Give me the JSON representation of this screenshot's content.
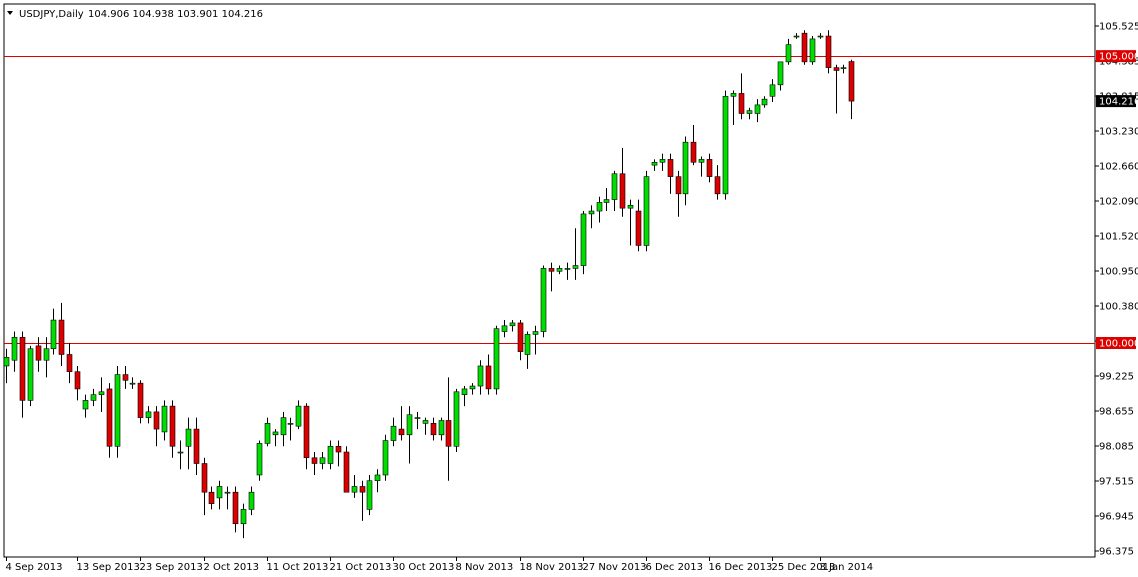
{
  "header": {
    "symbol": "USDJPY,Daily",
    "ohlc": "104.906 104.938 103.901 104.216"
  },
  "colors": {
    "bull": "#00dd00",
    "bear": "#dd0000",
    "wick": "#000000",
    "hline": "#dd0000",
    "grid_frame": "#000000"
  },
  "chart_data": {
    "type": "candlestick",
    "symbol": "USDJPY",
    "timeframe": "Daily",
    "ylim": [
      96.375,
      105.525
    ],
    "y_ticks": [
      "105.525",
      "104.385",
      "103.815",
      "103.230",
      "102.660",
      "102.090",
      "101.520",
      "100.950",
      "100.380",
      "99.810",
      "99.225",
      "98.655",
      "98.085",
      "97.515",
      "96.945",
      "96.375"
    ],
    "x_ticks": [
      "4 Sep 2013",
      "13 Sep 2013",
      "23 Sep 2013",
      "2 Oct 2013",
      "11 Oct 2013",
      "21 Oct 2013",
      "30 Oct 2013",
      "8 Nov 2013",
      "18 Nov 2013",
      "27 Nov 2013",
      "6 Dec 2013",
      "16 Dec 2013",
      "25 Dec 2013",
      "3 Jan 2014"
    ],
    "x_tick_bar_index": [
      0,
      9,
      17,
      25,
      33,
      41,
      49,
      57,
      65,
      73,
      81,
      89,
      97,
      103
    ],
    "horizontal_lines": [
      {
        "value": 105.0,
        "label": "105.000"
      },
      {
        "value": 100.0,
        "label": "100.000"
      }
    ],
    "current_price": {
      "value": 104.216,
      "label": "104.216"
    },
    "ohlc": [
      [
        99.6,
        99.9,
        99.3,
        99.75
      ],
      [
        99.7,
        100.2,
        99.5,
        100.1
      ],
      [
        100.1,
        100.2,
        98.7,
        99.0
      ],
      [
        99.0,
        99.95,
        98.9,
        99.9
      ],
      [
        99.95,
        100.1,
        99.5,
        99.7
      ],
      [
        99.7,
        100.1,
        99.4,
        99.9
      ],
      [
        99.9,
        100.6,
        99.8,
        100.4
      ],
      [
        100.4,
        100.7,
        99.6,
        99.8
      ],
      [
        99.8,
        100.0,
        99.3,
        99.5
      ],
      [
        99.5,
        99.6,
        99.0,
        99.2
      ],
      [
        98.85,
        99.1,
        98.7,
        99.0
      ],
      [
        99.0,
        99.2,
        98.9,
        99.1
      ],
      [
        99.1,
        99.4,
        98.8,
        99.15
      ],
      [
        99.2,
        99.3,
        98.0,
        98.2
      ],
      [
        98.2,
        99.6,
        98.0,
        99.45
      ],
      [
        99.45,
        99.6,
        99.2,
        99.35
      ],
      [
        99.3,
        99.4,
        99.2,
        99.3
      ],
      [
        99.3,
        99.35,
        98.6,
        98.7
      ],
      [
        98.7,
        98.9,
        98.6,
        98.8
      ],
      [
        98.8,
        98.9,
        98.2,
        98.5
      ],
      [
        98.45,
        99.0,
        98.3,
        98.9
      ],
      [
        98.9,
        99.0,
        98.0,
        98.2
      ],
      [
        98.1,
        98.3,
        97.8,
        98.1
      ],
      [
        98.2,
        98.7,
        97.8,
        98.5
      ],
      [
        98.5,
        98.7,
        97.7,
        97.9
      ],
      [
        97.9,
        98.0,
        97.0,
        97.4
      ],
      [
        97.4,
        97.5,
        97.1,
        97.2
      ],
      [
        97.3,
        97.6,
        97.1,
        97.5
      ],
      [
        97.4,
        97.5,
        97.1,
        97.4
      ],
      [
        97.4,
        97.5,
        96.7,
        96.85
      ],
      [
        96.85,
        97.2,
        96.6,
        97.1
      ],
      [
        97.1,
        97.5,
        97.0,
        97.4
      ],
      [
        97.7,
        98.3,
        97.6,
        98.25
      ],
      [
        98.25,
        98.7,
        98.2,
        98.6
      ],
      [
        98.4,
        98.5,
        98.2,
        98.45
      ],
      [
        98.4,
        98.8,
        98.2,
        98.7
      ],
      [
        98.6,
        98.7,
        98.3,
        98.6
      ],
      [
        98.55,
        99.0,
        98.5,
        98.9
      ],
      [
        98.9,
        98.95,
        97.8,
        98.0
      ],
      [
        98.0,
        98.1,
        97.7,
        97.9
      ],
      [
        97.9,
        98.1,
        97.8,
        98.0
      ],
      [
        97.9,
        98.3,
        97.8,
        98.2
      ],
      [
        98.2,
        98.3,
        97.85,
        98.1
      ],
      [
        98.1,
        98.2,
        97.4,
        97.4
      ],
      [
        97.4,
        97.7,
        97.3,
        97.5
      ],
      [
        97.5,
        97.6,
        96.9,
        97.4
      ],
      [
        97.1,
        97.7,
        97.0,
        97.6
      ],
      [
        97.6,
        97.8,
        97.4,
        97.7
      ],
      [
        97.7,
        98.4,
        97.6,
        98.3
      ],
      [
        98.3,
        98.7,
        98.2,
        98.55
      ],
      [
        98.5,
        98.9,
        98.3,
        98.4
      ],
      [
        98.4,
        98.9,
        97.9,
        98.75
      ],
      [
        98.7,
        98.8,
        98.5,
        98.7
      ],
      [
        98.6,
        98.7,
        98.4,
        98.65
      ],
      [
        98.6,
        98.7,
        98.3,
        98.4
      ],
      [
        98.4,
        98.7,
        98.3,
        98.65
      ],
      [
        98.65,
        99.4,
        97.6,
        98.2
      ],
      [
        98.2,
        99.2,
        98.1,
        99.15
      ],
      [
        99.1,
        99.25,
        98.9,
        99.2
      ],
      [
        99.2,
        99.3,
        99.1,
        99.25
      ],
      [
        99.25,
        99.7,
        99.1,
        99.6
      ],
      [
        99.6,
        99.8,
        99.1,
        99.2
      ],
      [
        99.2,
        100.3,
        99.1,
        100.25
      ],
      [
        100.2,
        100.4,
        100.1,
        100.3
      ],
      [
        100.3,
        100.4,
        100.2,
        100.35
      ],
      [
        100.35,
        100.4,
        99.7,
        99.85
      ],
      [
        99.8,
        100.2,
        99.55,
        100.15
      ],
      [
        100.15,
        100.3,
        99.8,
        100.2
      ],
      [
        100.2,
        101.35,
        100.1,
        101.3
      ],
      [
        101.3,
        101.4,
        100.9,
        101.25
      ],
      [
        101.25,
        101.35,
        101.2,
        101.3
      ],
      [
        101.3,
        101.4,
        101.1,
        101.3
      ],
      [
        101.3,
        102.0,
        101.1,
        101.35
      ],
      [
        101.35,
        102.3,
        101.2,
        102.25
      ],
      [
        102.25,
        102.4,
        102.0,
        102.3
      ],
      [
        102.3,
        102.55,
        102.1,
        102.45
      ],
      [
        102.45,
        102.7,
        102.3,
        102.5
      ],
      [
        102.5,
        103.0,
        102.3,
        102.95
      ],
      [
        102.95,
        103.4,
        102.2,
        102.35
      ],
      [
        102.35,
        102.5,
        101.7,
        102.4
      ],
      [
        102.3,
        102.5,
        101.6,
        101.7
      ],
      [
        101.7,
        103.0,
        101.6,
        102.9
      ],
      [
        103.1,
        103.2,
        103.0,
        103.15
      ],
      [
        103.15,
        103.3,
        103.0,
        103.2
      ],
      [
        103.2,
        103.3,
        102.6,
        102.9
      ],
      [
        102.9,
        103.0,
        102.2,
        102.6
      ],
      [
        102.6,
        103.6,
        102.4,
        103.5
      ],
      [
        103.5,
        103.8,
        103.1,
        103.15
      ],
      [
        103.15,
        103.25,
        102.9,
        103.2
      ],
      [
        103.2,
        103.3,
        102.8,
        102.9
      ],
      [
        102.9,
        103.1,
        102.5,
        102.6
      ],
      [
        102.6,
        104.4,
        102.5,
        104.3
      ],
      [
        104.3,
        104.4,
        103.8,
        104.35
      ],
      [
        104.35,
        104.7,
        103.9,
        104.0
      ],
      [
        104.0,
        104.1,
        103.9,
        104.05
      ],
      [
        104.0,
        104.25,
        103.85,
        104.15
      ],
      [
        104.15,
        104.3,
        104.1,
        104.25
      ],
      [
        104.3,
        104.6,
        104.2,
        104.5
      ],
      [
        104.5,
        104.9,
        104.4,
        104.9
      ],
      [
        104.9,
        105.3,
        104.85,
        105.2
      ],
      [
        105.35,
        105.4,
        105.3,
        105.35
      ],
      [
        105.4,
        105.45,
        104.85,
        104.9
      ],
      [
        104.9,
        105.35,
        104.85,
        105.3
      ],
      [
        105.35,
        105.4,
        105.3,
        105.35
      ],
      [
        105.35,
        105.45,
        104.7,
        104.8
      ],
      [
        104.8,
        104.85,
        104.0,
        104.75
      ],
      [
        104.8,
        104.85,
        104.7,
        104.8
      ],
      [
        104.906,
        104.938,
        103.901,
        104.216
      ]
    ]
  }
}
